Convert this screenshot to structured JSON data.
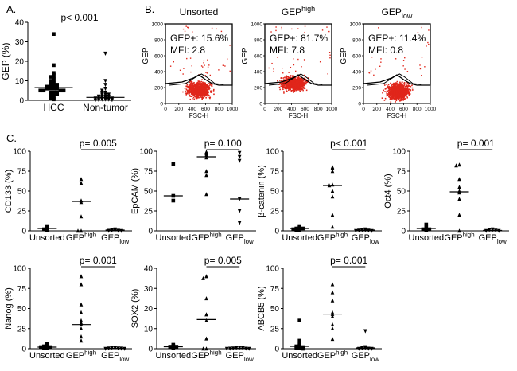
{
  "panel_labels": {
    "a": "A.",
    "b": "B.",
    "c": "C."
  },
  "chart_data": [
    {
      "id": "A",
      "type": "scatter",
      "title": "p< 0.001",
      "ylabel": "GEP (%)",
      "ylim": [
        0,
        40
      ],
      "yticks": [
        0,
        10,
        20,
        30,
        40
      ],
      "groups": [
        {
          "label": "HCC",
          "marker": "square",
          "median": 6.5,
          "values": [
            34,
            18,
            14,
            13,
            12,
            12,
            11,
            10,
            10,
            9,
            9,
            8,
            8,
            8,
            7,
            7,
            7,
            7,
            6,
            6,
            6,
            6,
            5,
            5,
            5,
            5,
            4,
            4,
            4,
            3,
            3,
            3,
            2,
            2,
            1,
            1,
            0.5
          ]
        },
        {
          "label": "Non-tumor",
          "marker": "triangle-down",
          "median": 1.5,
          "values": [
            24,
            10,
            8,
            6,
            5,
            4,
            4,
            3,
            3,
            3,
            2,
            2,
            2,
            2,
            1.5,
            1.5,
            1,
            1,
            1,
            1,
            0.5,
            0.5,
            0.5,
            0.2,
            0.2,
            0.1
          ]
        }
      ]
    },
    {
      "id": "B",
      "type": "scatter",
      "xlabel": "FSC-H",
      "ylabel": "GEP",
      "xlim": [
        0,
        1000
      ],
      "ylim": [
        0,
        1000
      ],
      "ticks": [
        0,
        200,
        400,
        600,
        800,
        1000
      ],
      "panels": [
        {
          "title": "Unsorted",
          "title_sup": "",
          "title_sub": "",
          "stat1": "GEP+: 15.6%",
          "stat2": "MFI: 2.8"
        },
        {
          "title": "GEP",
          "title_sup": "high",
          "title_sub": "",
          "stat1": "GEP+: 81.7%",
          "stat2": "MFI: 7.8"
        },
        {
          "title": "GEP",
          "title_sup": "",
          "title_sub": "low",
          "stat1": "GEP+: 11.4%",
          "stat2": "MFI: 0.8"
        }
      ]
    },
    {
      "id": "C-CD133",
      "type": "scatter",
      "ylabel": "CD133 (%)",
      "ylim": [
        0,
        100
      ],
      "yticks": [
        0,
        25,
        50,
        75,
        100
      ],
      "pvalue": "p= 0.005",
      "groups": [
        {
          "label": "Unsorted",
          "marker": "square",
          "median": 3,
          "values": [
            6,
            3,
            2,
            1
          ]
        },
        {
          "label": "GEP",
          "sup": "high",
          "marker": "triangle",
          "median": 37,
          "values": [
            65,
            60,
            38,
            36,
            18,
            0,
            0
          ]
        },
        {
          "label": "GEP",
          "sub": "low",
          "marker": "triangle-down",
          "median": 1,
          "values": [
            2,
            1.5,
            1,
            0.5,
            0.3,
            0.2,
            0
          ]
        }
      ]
    },
    {
      "id": "C-EpCAM",
      "type": "scatter",
      "ylabel": "EpCAM (%)",
      "ylim": [
        0,
        100
      ],
      "yticks": [
        0,
        25,
        50,
        75,
        100
      ],
      "pvalue": "p= 0.100",
      "groups": [
        {
          "label": "Unsorted",
          "marker": "square",
          "median": 44,
          "values": [
            84,
            44,
            38
          ]
        },
        {
          "label": "GEP",
          "sup": "high",
          "marker": "triangle",
          "median": 93,
          "values": [
            99,
            97,
            95,
            92,
            75,
            70,
            46
          ]
        },
        {
          "label": "GEP",
          "sub": "low",
          "marker": "triangle-down",
          "median": 40,
          "values": [
            98,
            93,
            88,
            40,
            25,
            10
          ]
        }
      ]
    },
    {
      "id": "C-bcatenin",
      "type": "scatter",
      "ylabel": "β-catenin (%)",
      "ylim": [
        0,
        100
      ],
      "yticks": [
        0,
        25,
        50,
        75,
        100
      ],
      "pvalue": "p< 0.001",
      "groups": [
        {
          "label": "Unsorted",
          "marker": "square",
          "median": 3,
          "values": [
            6,
            4,
            3,
            3,
            2,
            1,
            1
          ]
        },
        {
          "label": "GEP",
          "sup": "high",
          "marker": "triangle",
          "median": 57,
          "values": [
            80,
            79,
            75,
            58,
            57,
            50,
            43,
            20,
            5
          ]
        },
        {
          "label": "GEP",
          "sub": "low",
          "marker": "triangle-down",
          "median": 1,
          "values": [
            2,
            1.5,
            1,
            1,
            0.5,
            0.5,
            0,
            0
          ]
        }
      ]
    },
    {
      "id": "C-Oct4",
      "type": "scatter",
      "ylabel": "Oct4 (%)",
      "ylim": [
        0,
        100
      ],
      "yticks": [
        0,
        25,
        50,
        75,
        100
      ],
      "pvalue": "p= 0.001",
      "groups": [
        {
          "label": "Unsorted",
          "marker": "square",
          "median": 3,
          "values": [
            8,
            4,
            2,
            2,
            1
          ]
        },
        {
          "label": "GEP",
          "sup": "high",
          "marker": "triangle",
          "median": 49,
          "values": [
            83,
            82,
            65,
            55,
            50,
            48,
            40,
            20,
            0
          ]
        },
        {
          "label": "GEP",
          "sub": "low",
          "marker": "triangle-down",
          "median": 0.5,
          "values": [
            2,
            1,
            1,
            0.5,
            0,
            0
          ]
        }
      ]
    },
    {
      "id": "C-Nanog",
      "type": "scatter",
      "ylabel": "Nanog (%)",
      "ylim": [
        0,
        100
      ],
      "yticks": [
        0,
        25,
        50,
        75,
        100
      ],
      "pvalue": "p= 0.001",
      "groups": [
        {
          "label": "Unsorted",
          "marker": "square",
          "median": 2,
          "values": [
            6,
            4,
            3,
            2,
            2,
            1,
            1
          ]
        },
        {
          "label": "GEP",
          "sup": "high",
          "marker": "triangle",
          "median": 30,
          "values": [
            90,
            80,
            55,
            45,
            35,
            32,
            30,
            25,
            15,
            10
          ]
        },
        {
          "label": "GEP",
          "sub": "low",
          "marker": "triangle-down",
          "median": 0.5,
          "values": [
            1.5,
            1,
            1,
            0.5,
            0.5,
            0.3,
            0,
            0
          ]
        }
      ]
    },
    {
      "id": "C-SOX2",
      "type": "scatter",
      "ylabel": "SOX2 (%)",
      "ylim": [
        0,
        40
      ],
      "yticks": [
        0,
        10,
        20,
        30,
        40
      ],
      "pvalue": "p= 0.005",
      "groups": [
        {
          "label": "Unsorted",
          "marker": "square",
          "median": 1,
          "values": [
            2,
            1.5,
            1,
            1,
            0.5
          ]
        },
        {
          "label": "GEP",
          "sup": "high",
          "marker": "triangle",
          "median": 14.5,
          "values": [
            36,
            35,
            25,
            17,
            14,
            5,
            0,
            0
          ]
        },
        {
          "label": "GEP",
          "sub": "low",
          "marker": "triangle-down",
          "median": 0.2,
          "values": [
            0.5,
            0.4,
            0.3,
            0.2,
            0.1,
            0.1,
            0,
            0
          ]
        }
      ]
    },
    {
      "id": "C-ABCB5",
      "type": "scatter",
      "ylabel": "ABCB5 (%)",
      "ylim": [
        0,
        100
      ],
      "yticks": [
        0,
        25,
        50,
        75,
        100
      ],
      "pvalue": "p= 0.001",
      "groups": [
        {
          "label": "Unsorted",
          "marker": "square",
          "median": 3,
          "values": [
            35,
            10,
            6,
            4,
            3,
            2,
            1,
            1,
            0
          ]
        },
        {
          "label": "GEP",
          "sup": "high",
          "marker": "triangle",
          "median": 43,
          "values": [
            80,
            70,
            60,
            45,
            43,
            40,
            30,
            25,
            12
          ]
        },
        {
          "label": "GEP",
          "sub": "low",
          "marker": "triangle-down",
          "median": 1,
          "values": [
            22,
            2,
            1.5,
            1,
            0.5,
            0.2,
            0,
            0
          ]
        }
      ]
    }
  ]
}
